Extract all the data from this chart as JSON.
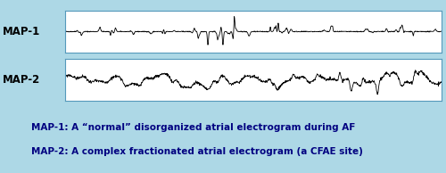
{
  "background_color": "#add8e6",
  "waveform_bg": "#ffffff",
  "border_color": "#5599bb",
  "text_color": "#000080",
  "label1": "MAP-1",
  "label2": "MAP-2",
  "caption1": "MAP-1: A “normal” disorganized atrial electrogram during AF",
  "caption2": "MAP-2: A complex fractionated atrial electrogram (a CFAE site)",
  "top_bar_color": "#1a3a6b",
  "orange_bar_color": "#e07020",
  "n_points": 1200,
  "seed1": 42,
  "seed2": 99
}
